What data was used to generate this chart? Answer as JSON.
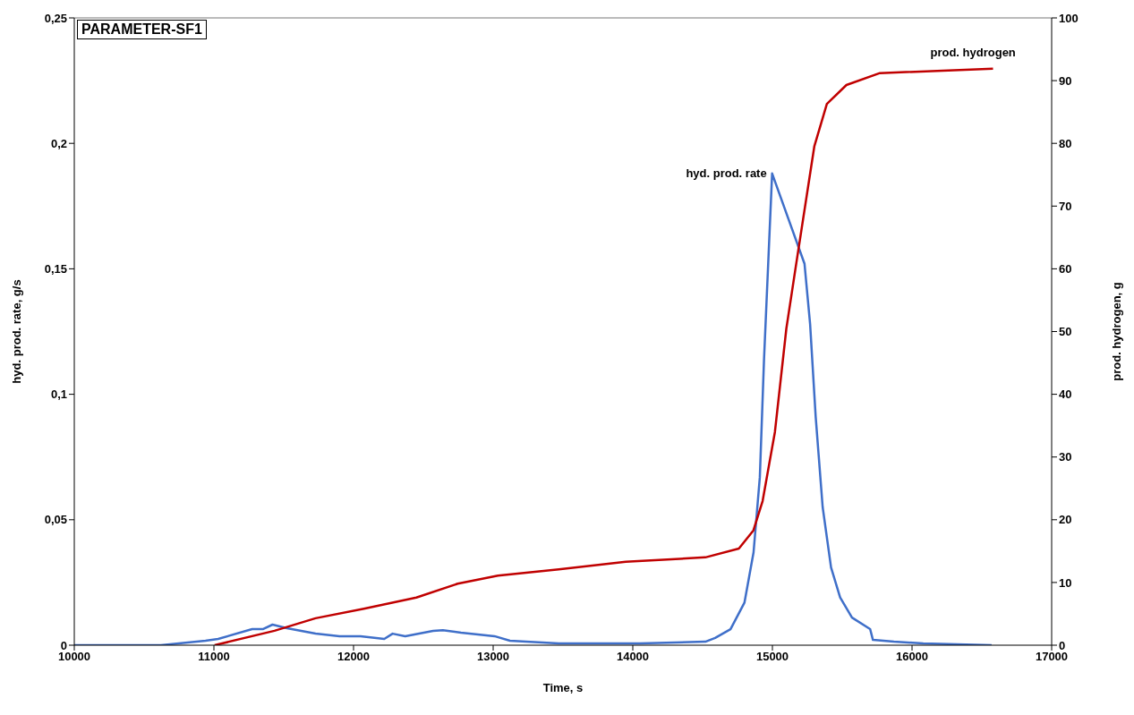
{
  "chart_data": {
    "type": "line",
    "title": "PARAMETER-SF1",
    "xlabel": "Time, s",
    "ylabel": "hyd. prod. rate, g/s",
    "y2label": "prod. hydrogen, g",
    "xlim": [
      10000,
      17000
    ],
    "xticks": [
      10000,
      11000,
      12000,
      13000,
      14000,
      15000,
      16000,
      17000
    ],
    "ylim": [
      0,
      0.25
    ],
    "yticks": [
      0,
      {
        "value": 0.05,
        "label": "0,05"
      },
      {
        "value": 0.1,
        "label": "0,1"
      },
      {
        "value": 0.15,
        "label": "0,15"
      },
      {
        "value": 0.2,
        "label": "0,2"
      },
      {
        "value": 0.25,
        "label": "0,25"
      }
    ],
    "y2lim": [
      0,
      100
    ],
    "y2ticks": [
      0,
      10,
      20,
      30,
      40,
      50,
      60,
      70,
      80,
      90,
      100
    ],
    "marker": "none",
    "line_style": "solid",
    "series": [
      {
        "name": "hyd. prod. rate",
        "color": "#3f6fc9",
        "x": [
          10000,
          10620,
          10940,
          11030,
          11274,
          11350,
          11420,
          11523,
          11728,
          11900,
          12050,
          12220,
          12280,
          12370,
          12570,
          12640,
          12770,
          13010,
          13120,
          13470,
          13700,
          14050,
          14520,
          14590,
          14700,
          14800,
          14865,
          14910,
          14940,
          14998,
          15230,
          15270,
          15310,
          15360,
          15420,
          15485,
          15570,
          15700,
          15720,
          15870,
          16080,
          16570
        ],
        "values": [
          0,
          0,
          0.0018,
          0.0025,
          0.0064,
          0.0064,
          0.0082,
          0.0068,
          0.0046,
          0.0036,
          0.0036,
          0.0025,
          0.0046,
          0.0036,
          0.0057,
          0.006,
          0.005,
          0.0036,
          0.0018,
          0.0007,
          0.0007,
          0.0007,
          0.0014,
          0.0029,
          0.0064,
          0.017,
          0.037,
          0.067,
          0.114,
          0.188,
          0.152,
          0.128,
          0.091,
          0.055,
          0.031,
          0.019,
          0.011,
          0.0064,
          0.0021,
          0.0014,
          0.0007,
          0
        ]
      },
      {
        "name": "prod. hydrogen",
        "color": "#c00000",
        "axis": "y2",
        "x": [
          11005,
          11434,
          11728,
          12074,
          12450,
          12746,
          13034,
          13470,
          13950,
          14520,
          14760,
          14864,
          14930,
          15018,
          15100,
          15165,
          15300,
          15390,
          15530,
          15770,
          16580
        ],
        "values": [
          0,
          2.3,
          4.3,
          5.8,
          7.6,
          9.8,
          11.1,
          12.1,
          13.3,
          14.0,
          15.4,
          18.3,
          23,
          34,
          50.5,
          60,
          79.5,
          86.3,
          89.3,
          91.2,
          91.9
        ]
      }
    ]
  }
}
